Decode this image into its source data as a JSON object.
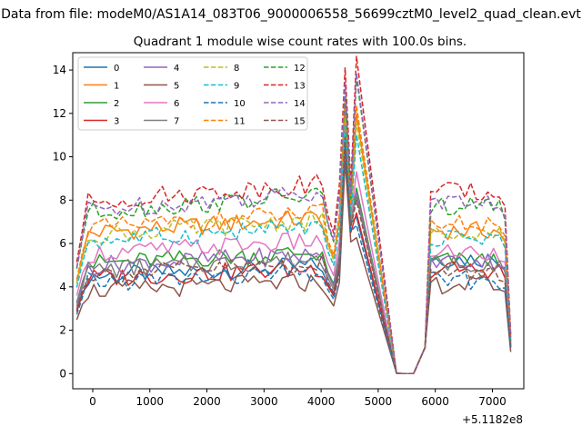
{
  "figure": {
    "suptitle": "Data from file: modeM0/AS1A14_083T06_9000006558_56699cztM0_level2_quad_clean.evt",
    "offset_label": "+5.1182e8"
  },
  "chart_data": {
    "type": "line",
    "title": "Quadrant 1 module wise count rates with 100.0s bins.",
    "xlabel": "",
    "ylabel": "",
    "xlim": [
      -350,
      7550
    ],
    "ylim": [
      -0.7,
      14.8
    ],
    "xticks": [
      0,
      1000,
      2000,
      3000,
      4000,
      5000,
      6000,
      7000
    ],
    "yticks": [
      0,
      2,
      4,
      6,
      8,
      10,
      12,
      14
    ],
    "grid": false,
    "legend_position": "top-left",
    "legend_columns": 4,
    "bins": {
      "segment1": {
        "start": -280,
        "step": 100,
        "count": 50
      },
      "segment2": {
        "start": 5920,
        "step": 100,
        "count": 15
      }
    },
    "series": [
      {
        "name": "0",
        "color": "#1f77b4",
        "dash": "solid",
        "s1_base": 4.7,
        "s1_end": 3.8,
        "peak": 11.2,
        "s2_base": 5.3,
        "s2_end": 1.2
      },
      {
        "name": "1",
        "color": "#ff7f0e",
        "dash": "solid",
        "s1_base": 6.8,
        "s1_end": 6.3,
        "peak": 12.0,
        "s2_base": 6.6,
        "s2_end": 1.5
      },
      {
        "name": "2",
        "color": "#2ca02c",
        "dash": "solid",
        "s1_base": 5.3,
        "s1_end": 4.5,
        "peak": 11.0,
        "s2_base": 5.2,
        "s2_end": 1.3
      },
      {
        "name": "3",
        "color": "#d62728",
        "dash": "solid",
        "s1_base": 4.6,
        "s1_end": 3.9,
        "peak": 10.5,
        "s2_base": 4.8,
        "s2_end": 1.2
      },
      {
        "name": "4",
        "color": "#9467bd",
        "dash": "solid",
        "s1_base": 5.2,
        "s1_end": 4.4,
        "peak": 12.5,
        "s2_base": 5.2,
        "s2_end": 1.3
      },
      {
        "name": "5",
        "color": "#8c564b",
        "dash": "solid",
        "s1_base": 4.0,
        "s1_end": 3.3,
        "peak": 9.8,
        "s2_base": 4.1,
        "s2_end": 1.0
      },
      {
        "name": "6",
        "color": "#e377c2",
        "dash": "solid",
        "s1_base": 5.8,
        "s1_end": 4.9,
        "peak": 11.6,
        "s2_base": 5.6,
        "s2_end": 1.4
      },
      {
        "name": "7",
        "color": "#7f7f7f",
        "dash": "solid",
        "s1_base": 5.0,
        "s1_end": 4.3,
        "peak": 11.4,
        "s2_base": 5.1,
        "s2_end": 1.3
      },
      {
        "name": "8",
        "color": "#bcbd22",
        "dash": "dashed",
        "s1_base": 6.7,
        "s1_end": 6.1,
        "peak": 11.8,
        "s2_base": 6.6,
        "s2_end": 1.5
      },
      {
        "name": "9",
        "color": "#17becf",
        "dash": "dashed",
        "s1_base": 6.4,
        "s1_end": 5.8,
        "peak": 11.5,
        "s2_base": 6.3,
        "s2_end": 1.5
      },
      {
        "name": "10",
        "color": "#1f77b4",
        "dash": "dashed",
        "s1_base": 4.4,
        "s1_end": 3.6,
        "peak": 10.6,
        "s2_base": 4.3,
        "s2_end": 1.1
      },
      {
        "name": "11",
        "color": "#ff7f0e",
        "dash": "dashed",
        "s1_base": 7.0,
        "s1_end": 6.5,
        "peak": 12.7,
        "s2_base": 6.9,
        "s2_end": 1.6
      },
      {
        "name": "12",
        "color": "#2ca02c",
        "dash": "dashed",
        "s1_base": 7.8,
        "s1_end": 7.2,
        "peak": 13.0,
        "s2_base": 7.7,
        "s2_end": 1.7
      },
      {
        "name": "13",
        "color": "#d62728",
        "dash": "dashed",
        "s1_base": 8.3,
        "s1_end": 7.7,
        "peak": 14.1,
        "s2_base": 8.4,
        "s2_end": 1.8
      },
      {
        "name": "14",
        "color": "#9467bd",
        "dash": "dashed",
        "s1_base": 7.9,
        "s1_end": 7.3,
        "peak": 13.4,
        "s2_base": 7.9,
        "s2_end": 1.7
      },
      {
        "name": "15",
        "color": "#8c564b",
        "dash": "dashed",
        "s1_base": 4.8,
        "s1_end": 4.2,
        "peak": 10.9,
        "s2_base": 4.6,
        "s2_end": 1.2
      }
    ]
  }
}
